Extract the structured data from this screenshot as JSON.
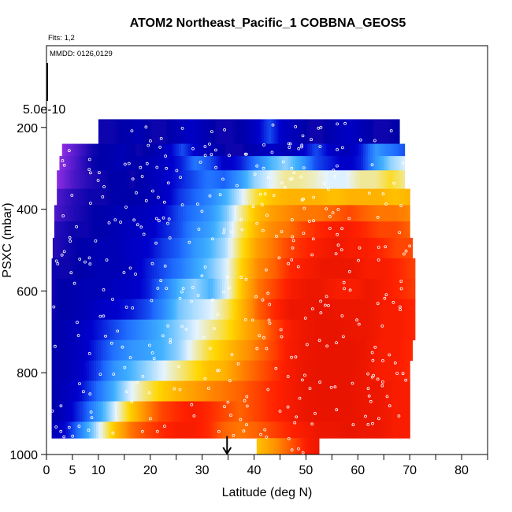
{
  "chart_data": {
    "type": "heatmap",
    "title": "ATOM2 Northeast_Pacific_1 COBBNA_GEOS5",
    "annotations": {
      "flights": "Flts: 1,2",
      "dates": "MMDD: 0126,0129"
    },
    "xlabel": "Latitude (deg N)",
    "ylabel": "PSXC (mbar)",
    "xlim": [
      0,
      85
    ],
    "ylim": [
      1000,
      0
    ],
    "x_ticks": [
      0,
      5,
      10,
      20,
      30,
      40,
      50,
      60,
      70,
      80
    ],
    "x_tick_labels": [
      "0",
      "5",
      "10",
      "20",
      "30",
      "40",
      "50",
      "60",
      "70",
      "80"
    ],
    "x_minor_ticks": [
      15,
      25,
      35,
      45,
      55,
      65,
      75,
      85
    ],
    "y_ticks": [
      200,
      400,
      600,
      800,
      1000
    ],
    "y_tick_labels": [
      "200",
      "400",
      "600",
      "800",
      "1000"
    ],
    "colorbar_label": "5.0e-10",
    "colorbar_value": 5e-10,
    "arrow_latitude": 34.8,
    "grid": false,
    "color_scale": [
      "#8a2be2",
      "#0000a8",
      "#0000cd",
      "#1e6cff",
      "#3fb0ff",
      "#e6f4ff",
      "#ffd700",
      "#ff8c00",
      "#ff2000",
      "#c00000"
    ],
    "bands": [
      {
        "pmin": 180,
        "pmax": 240,
        "lat0": 10,
        "lat1": 68,
        "v": [
          0.1,
          0.1,
          0.12,
          0.15,
          0.1,
          0.1,
          0.15,
          0.2,
          0.15,
          0.1,
          0.1,
          0.12,
          0.2,
          0.3,
          0.2,
          0.15,
          0.1,
          0.1,
          0.15,
          0.2,
          0.15,
          0.1,
          0.1,
          0.12
        ]
      },
      {
        "pmin": 240,
        "pmax": 270,
        "lat0": 3,
        "lat1": 69,
        "v": [
          0.0,
          0.05,
          0.1,
          0.12,
          0.15,
          0.1,
          0.12,
          0.2,
          0.3,
          0.2,
          0.15,
          0.1,
          0.1,
          0.15,
          0.2,
          0.15,
          0.2,
          0.3,
          0.2,
          0.15,
          0.25,
          0.4,
          0.35,
          0.3
        ]
      },
      {
        "pmin": 270,
        "pmax": 305,
        "lat0": 2.5,
        "lat1": 69,
        "v": [
          0.0,
          0.05,
          0.1,
          0.12,
          0.15,
          0.12,
          0.15,
          0.2,
          0.25,
          0.35,
          0.3,
          0.2,
          0.25,
          0.35,
          0.45,
          0.5,
          0.42,
          0.3,
          0.25,
          0.2,
          0.25,
          0.4,
          0.5,
          0.55
        ]
      },
      {
        "pmin": 305,
        "pmax": 350,
        "lat0": 2,
        "lat1": 69,
        "v": [
          0.0,
          0.05,
          0.08,
          0.1,
          0.12,
          0.1,
          0.15,
          0.2,
          0.25,
          0.3,
          0.35,
          0.32,
          0.4,
          0.5,
          0.55,
          0.6,
          0.6,
          0.58,
          0.55,
          0.55,
          0.6,
          0.6,
          0.65,
          0.6
        ]
      },
      {
        "pmin": 350,
        "pmax": 390,
        "lat0": 2,
        "lat1": 70,
        "v": [
          0.05,
          0.08,
          0.1,
          0.1,
          0.12,
          0.12,
          0.15,
          0.2,
          0.28,
          0.33,
          0.38,
          0.45,
          0.55,
          0.65,
          0.7,
          0.72,
          0.72,
          0.72,
          0.7,
          0.72,
          0.72,
          0.72,
          0.7,
          0.72
        ]
      },
      {
        "pmin": 390,
        "pmax": 430,
        "lat0": 1.5,
        "lat1": 70,
        "v": [
          0.05,
          0.08,
          0.1,
          0.12,
          0.15,
          0.15,
          0.18,
          0.22,
          0.3,
          0.35,
          0.4,
          0.48,
          0.6,
          0.7,
          0.75,
          0.78,
          0.8,
          0.8,
          0.82,
          0.85,
          0.82,
          0.8,
          0.8,
          0.78
        ]
      },
      {
        "pmin": 430,
        "pmax": 470,
        "lat0": 1.5,
        "lat1": 70,
        "v": [
          0.08,
          0.1,
          0.1,
          0.12,
          0.15,
          0.18,
          0.2,
          0.25,
          0.3,
          0.38,
          0.42,
          0.5,
          0.62,
          0.72,
          0.78,
          0.8,
          0.85,
          0.88,
          0.9,
          0.9,
          0.88,
          0.85,
          0.85,
          0.82
        ]
      },
      {
        "pmin": 470,
        "pmax": 520,
        "lat0": 1.2,
        "lat1": 70.5,
        "v": [
          0.08,
          0.1,
          0.12,
          0.15,
          0.15,
          0.2,
          0.22,
          0.28,
          0.32,
          0.4,
          0.45,
          0.52,
          0.65,
          0.75,
          0.8,
          0.85,
          0.88,
          0.9,
          0.92,
          0.9,
          0.9,
          0.88,
          0.85,
          0.85
        ]
      },
      {
        "pmin": 520,
        "pmax": 570,
        "lat0": 1,
        "lat1": 71,
        "v": [
          0.1,
          0.1,
          0.12,
          0.15,
          0.15,
          0.18,
          0.25,
          0.3,
          0.35,
          0.42,
          0.48,
          0.55,
          0.68,
          0.78,
          0.82,
          0.88,
          0.9,
          0.92,
          0.92,
          0.92,
          0.9,
          0.9,
          0.88,
          0.85
        ]
      },
      {
        "pmin": 570,
        "pmax": 620,
        "lat0": 1,
        "lat1": 71,
        "v": [
          0.1,
          0.12,
          0.15,
          0.15,
          0.18,
          0.2,
          0.25,
          0.35,
          0.45,
          0.5,
          0.45,
          0.55,
          0.7,
          0.8,
          0.85,
          0.9,
          0.92,
          0.92,
          0.9,
          0.9,
          0.92,
          0.9,
          0.88,
          0.86
        ]
      },
      {
        "pmin": 620,
        "pmax": 670,
        "lat0": 1,
        "lat1": 71,
        "v": [
          0.1,
          0.12,
          0.15,
          0.2,
          0.22,
          0.25,
          0.3,
          0.38,
          0.48,
          0.52,
          0.55,
          0.62,
          0.72,
          0.82,
          0.88,
          0.92,
          0.92,
          0.93,
          0.92,
          0.92,
          0.92,
          0.9,
          0.9,
          0.88
        ]
      },
      {
        "pmin": 670,
        "pmax": 720,
        "lat0": 1,
        "lat1": 71,
        "v": [
          0.12,
          0.15,
          0.2,
          0.25,
          0.3,
          0.35,
          0.4,
          0.45,
          0.5,
          0.55,
          0.6,
          0.65,
          0.72,
          0.78,
          0.85,
          0.9,
          0.92,
          0.93,
          0.93,
          0.92,
          0.92,
          0.9,
          0.9,
          0.88
        ]
      },
      {
        "pmin": 720,
        "pmax": 770,
        "lat0": 1,
        "lat1": 70.5,
        "v": [
          0.12,
          0.15,
          0.2,
          0.28,
          0.35,
          0.4,
          0.42,
          0.45,
          0.5,
          0.58,
          0.65,
          0.7,
          0.75,
          0.8,
          0.85,
          0.9,
          0.92,
          0.93,
          0.93,
          0.93,
          0.92,
          0.9,
          0.9,
          0.88
        ]
      },
      {
        "pmin": 770,
        "pmax": 820,
        "lat0": 1,
        "lat1": 70,
        "v": [
          0.12,
          0.15,
          0.22,
          0.3,
          0.4,
          0.45,
          0.5,
          0.55,
          0.6,
          0.65,
          0.7,
          0.72,
          0.78,
          0.82,
          0.86,
          0.9,
          0.92,
          0.93,
          0.93,
          0.93,
          0.92,
          0.9,
          0.9,
          0.88
        ]
      },
      {
        "pmin": 820,
        "pmax": 870,
        "lat0": 1,
        "lat1": 70,
        "v": [
          0.12,
          0.18,
          0.25,
          0.35,
          0.45,
          0.55,
          0.62,
          0.68,
          0.72,
          0.75,
          0.78,
          0.8,
          0.82,
          0.85,
          0.88,
          0.9,
          0.92,
          0.93,
          0.93,
          0.93,
          0.92,
          0.92,
          0.9,
          0.9
        ]
      },
      {
        "pmin": 870,
        "pmax": 920,
        "lat0": 1,
        "lat1": 70,
        "v": [
          0.12,
          0.2,
          0.3,
          0.42,
          0.55,
          0.68,
          0.78,
          0.85,
          0.88,
          0.9,
          0.88,
          0.85,
          0.82,
          0.85,
          0.88,
          0.9,
          0.92,
          0.93,
          0.93,
          0.93,
          0.92,
          0.92,
          0.9,
          0.9
        ]
      },
      {
        "pmin": 920,
        "pmax": 960,
        "lat0": 1,
        "lat1": 70,
        "v": [
          0.15,
          0.25,
          0.4,
          0.55,
          0.7,
          0.8,
          0.85,
          0.88,
          0.9,
          0.9,
          0.88,
          0.82,
          0.8,
          0.82,
          0.85,
          0.88,
          0.9,
          0.92,
          0.92,
          0.93,
          0.92,
          0.92,
          0.9,
          0.9
        ]
      },
      {
        "pmin": 960,
        "pmax": 1000,
        "lat0": 40.5,
        "lat1": 52.5,
        "v": [
          0.7,
          0.75,
          0.8,
          0.85,
          0.9,
          0.92
        ]
      }
    ]
  }
}
